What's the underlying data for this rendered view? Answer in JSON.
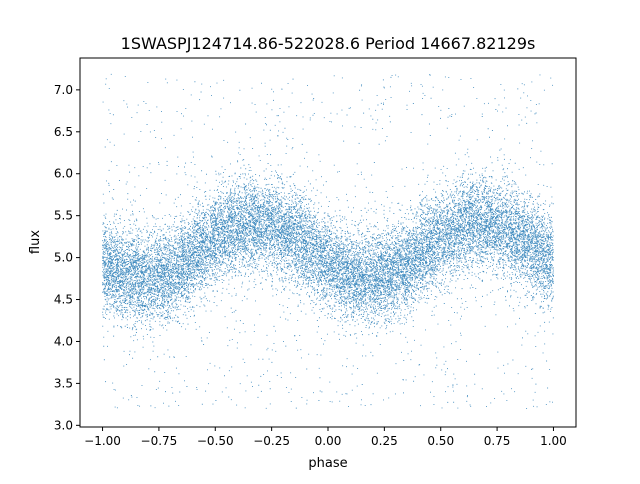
{
  "chart_data": {
    "type": "scatter",
    "title": "1SWASPJ124714.86-522028.6 Period 14667.82129s",
    "xlabel": "phase",
    "ylabel": "flux",
    "xlim": [
      -1.1,
      1.1
    ],
    "ylim": [
      2.98,
      7.38
    ],
    "grid": false,
    "legend": "none",
    "x_ticks": [
      -1.0,
      -0.75,
      -0.5,
      -0.25,
      0.0,
      0.25,
      0.5,
      0.75,
      1.0
    ],
    "x_tick_labels": [
      "−1.00",
      "−0.75",
      "−0.50",
      "−0.25",
      "0.00",
      "0.25",
      "0.50",
      "0.75",
      "1.00"
    ],
    "y_ticks": [
      3.0,
      3.5,
      4.0,
      4.5,
      5.0,
      5.5,
      6.0,
      6.5,
      7.0
    ],
    "y_tick_labels": [
      "3.0",
      "3.5",
      "4.0",
      "4.5",
      "5.0",
      "5.5",
      "6.0",
      "6.5",
      "7.0"
    ],
    "series": [
      {
        "color": "#1f77b4",
        "point_count": 20000,
        "phase_range": [
          -1.0,
          1.0
        ],
        "model": {
          "form": "mean + amplitude*cos(2*pi*(phase - phase_of_max))",
          "mean": 5.08,
          "amplitude": 0.33,
          "phase_of_max": -0.32,
          "phase_of_min": 0.18,
          "scatter_sigma": 0.27,
          "outlier_fraction": 0.06,
          "outlier_range": [
            3.2,
            7.2
          ]
        }
      }
    ]
  }
}
